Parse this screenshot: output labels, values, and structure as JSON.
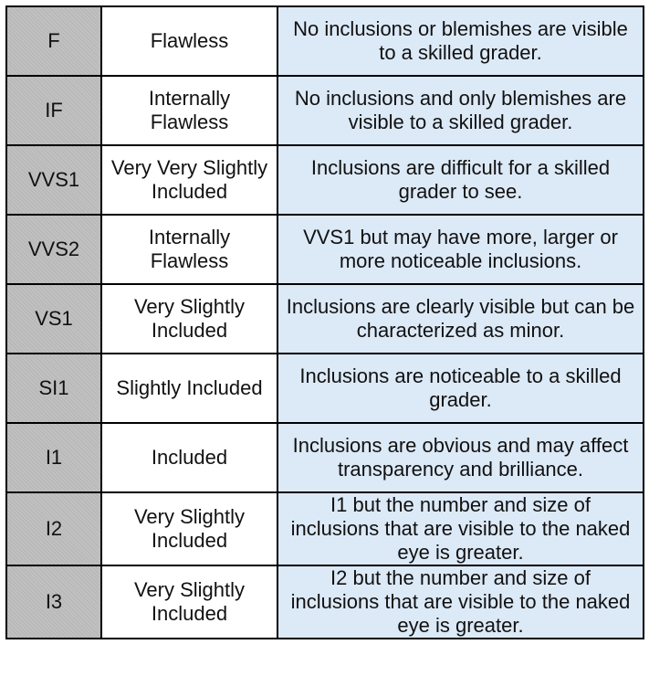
{
  "table": {
    "rows": [
      {
        "grade": "F",
        "name": "Flawless",
        "description": "No inclusions or blemishes are visible to a skilled grader."
      },
      {
        "grade": "IF",
        "name": "Internally Flawless",
        "description": "No inclusions and only blemishes are visible to a skilled grader."
      },
      {
        "grade": "VVS1",
        "name": "Very Very Slightly Included",
        "description": "Inclusions are difficult for a skilled grader to see."
      },
      {
        "grade": "VVS2",
        "name": "Internally Flawless",
        "description": "VVS1 but may have more, larger or more noticeable inclusions."
      },
      {
        "grade": "VS1",
        "name": "Very Slightly Included",
        "description": "Inclusions are clearly visible but can be characterized as minor."
      },
      {
        "grade": "SI1",
        "name": "Slightly Included",
        "description": "Inclusions are noticeable to a skilled grader."
      },
      {
        "grade": "I1",
        "name": "Included",
        "description": "Inclusions are obvious and may affect transparency and brilliance."
      },
      {
        "grade": "I2",
        "name": "Very Slightly Included",
        "description": "I1 but the number and size of inclusions that are visible to the naked eye is greater."
      },
      {
        "grade": "I3",
        "name": "Very Slightly Included",
        "description": "I2 but the number and size of inclusions that are visible to the naked eye is greater."
      }
    ]
  },
  "colors": {
    "grade_column_bg": "#c0c0c0",
    "name_column_bg": "#ffffff",
    "description_column_bg": "#dce9f7",
    "border": "#000000"
  }
}
